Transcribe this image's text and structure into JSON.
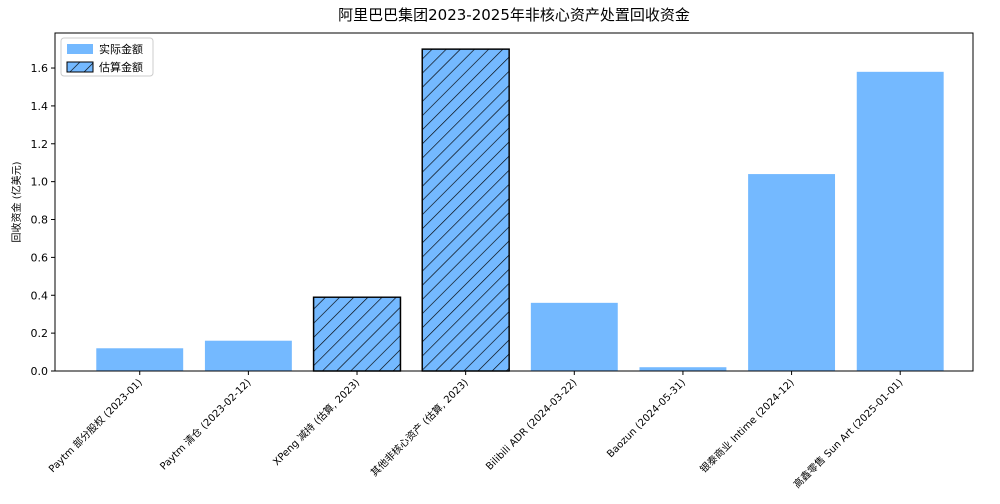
{
  "chart_data": {
    "type": "bar",
    "title": "阿里巴巴集团2023-2025年非核心资产处置回收资金",
    "y_label": "回收资金 (亿美元)",
    "categories": [
      "Paytm 部分股权 (2023-01)",
      "Paytm 清仓 (2023-02-12)",
      "XPeng 减持 (估算, 2023)",
      "其他非核心资产 (估算, 2023)",
      "Bilibili ADR (2024-03-22)",
      "Baozun (2024-05-31)",
      "银泰商业 Intime (2024-12)",
      "高鑫零售 Sun Art (2025-01-01)"
    ],
    "series": [
      {
        "name": "实际金额",
        "color": "#74b9ff",
        "hatch": false,
        "values": [
          0.12,
          0.16,
          null,
          null,
          0.36,
          0.02,
          1.04,
          1.58
        ]
      },
      {
        "name": "估算金额",
        "color": "#74b9ff",
        "hatch": true,
        "values": [
          null,
          null,
          0.39,
          1.7,
          null,
          null,
          null,
          null
        ]
      }
    ],
    "ylim": [
      0,
      1.785
    ],
    "yticks": [
      {
        "value": 0,
        "label": "0.0"
      },
      {
        "value": 0.2,
        "label": "0.2"
      },
      {
        "value": 0.4,
        "label": "0.4"
      },
      {
        "value": 0.6,
        "label": "0.6"
      },
      {
        "value": 0.8,
        "label": "0.8"
      },
      {
        "value": 1,
        "label": "1.0"
      },
      {
        "value": 1.2,
        "label": "1.2"
      },
      {
        "value": 1.4,
        "label": "1.4"
      },
      {
        "value": 1.6,
        "label": "1.6"
      }
    ],
    "legend_loc": "upper left",
    "grid": false
  }
}
